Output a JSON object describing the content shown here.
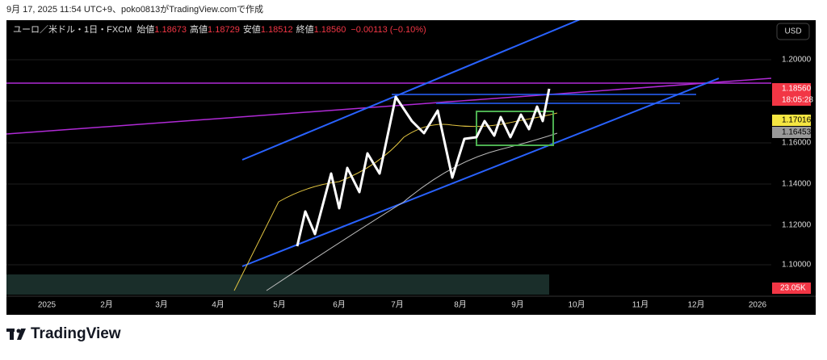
{
  "header": {
    "caption": "9月 17, 2025 11:54 UTC+9、poko0813がTradingView.comで作成"
  },
  "legend": {
    "symbol": "ユーロ／米ドル・1日・FXCM",
    "fields": [
      {
        "label": "始値",
        "value": "1.18673"
      },
      {
        "label": "高値",
        "value": "1.18729"
      },
      {
        "label": "安値",
        "value": "1.18512"
      },
      {
        "label": "終値",
        "value": "1.18560"
      }
    ],
    "change": "−0.00113 (−0.10%)"
  },
  "price_axis": {
    "currency": "USD",
    "ticks": [
      "1.20000",
      "1.16000",
      "1.14000",
      "1.12000",
      "1.10000"
    ],
    "last_price": {
      "value": "1.18560",
      "countdown": "18:05:28"
    },
    "badges": [
      "1.17016",
      "1.16453"
    ],
    "volume": "23.05K"
  },
  "time_axis": {
    "labels": [
      "2025",
      "2月",
      "3月",
      "4月",
      "5月",
      "6月",
      "7月",
      "8月",
      "9月",
      "10月",
      "11月",
      "12月",
      "2026"
    ]
  },
  "logo": "TradingView"
}
